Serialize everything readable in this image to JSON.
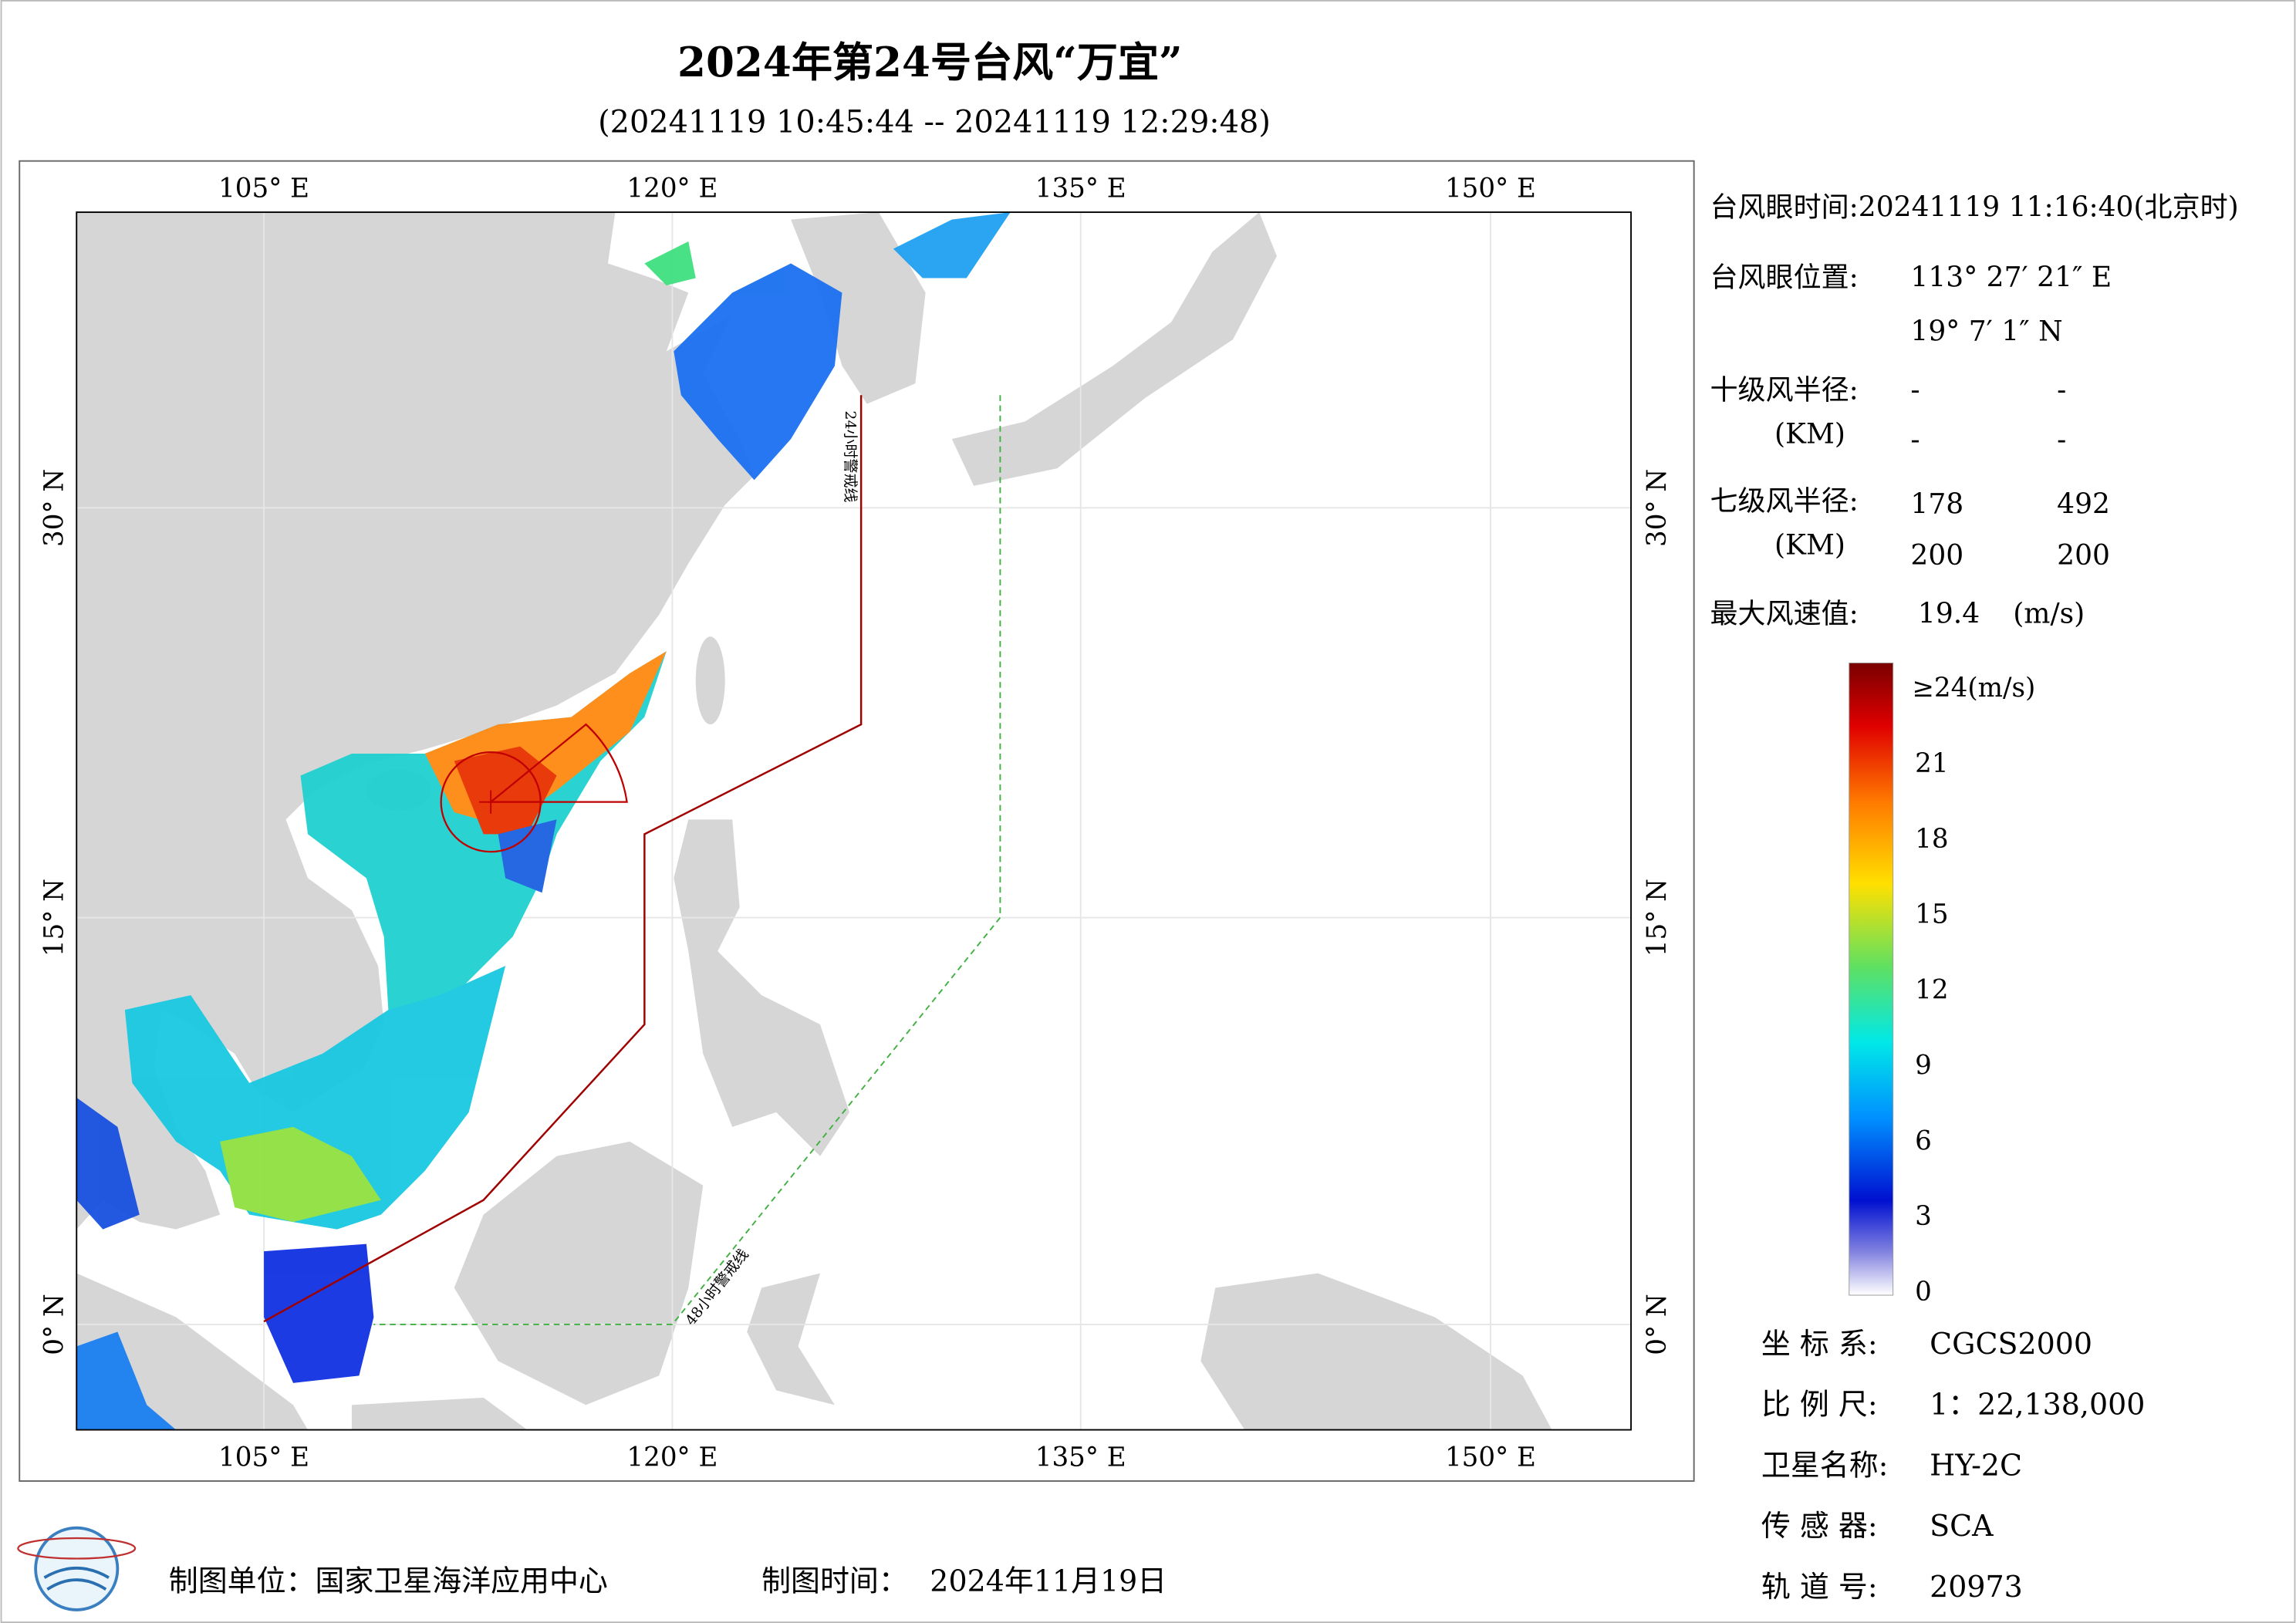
{
  "header": {
    "title": "2024年第24号台风“万宜”",
    "subtitle": "(20241119 10:45:44 -- 20241119 12:29:48)"
  },
  "map": {
    "lon_labels": [
      "105° E",
      "120° E",
      "135° E",
      "150° E"
    ],
    "lat_labels": [
      "30° N",
      "15° N",
      "0° N"
    ],
    "warning_24h": "24小时警戒线",
    "warning_48h": "48小时警戒线"
  },
  "info": {
    "eye_time": "台风眼时间:20241119 11:16:40(北京时)",
    "eye_pos_label": "台风眼位置:",
    "eye_lon": "113° 27′ 21″ E",
    "eye_lat": "19° 7′ 1″ N",
    "r10_label": "十级风半径:",
    "r10_unit": "(KM)",
    "r10_values": [
      "-",
      "-",
      "-",
      "-"
    ],
    "r7_label": "七级风半径:",
    "r7_unit": "(KM)",
    "r7_values": [
      178,
      492,
      200,
      200
    ],
    "max_label": "最大风速值:",
    "max_value": 19.4,
    "max_unit": "(m/s)"
  },
  "colorbar": {
    "top_label": "≥24(m/s)",
    "top_value": 24,
    "ticks": [
      21,
      18,
      15,
      12,
      9,
      6,
      3,
      0
    ]
  },
  "meta": [
    {
      "label": "坐 标 系:",
      "value": "CGCS2000"
    },
    {
      "label": "比 例 尺:",
      "value": "1：22,138,000"
    },
    {
      "label": "卫星名称:",
      "value": "HY-2C"
    },
    {
      "label": "传 感 器:",
      "value": "SCA"
    },
    {
      "label": "轨 道 号:",
      "value": "20973"
    }
  ],
  "footer": {
    "unit": "制图单位：国家卫星海洋应用中心",
    "time_label": "制图时间：",
    "time_value": "2024年11月19日"
  }
}
